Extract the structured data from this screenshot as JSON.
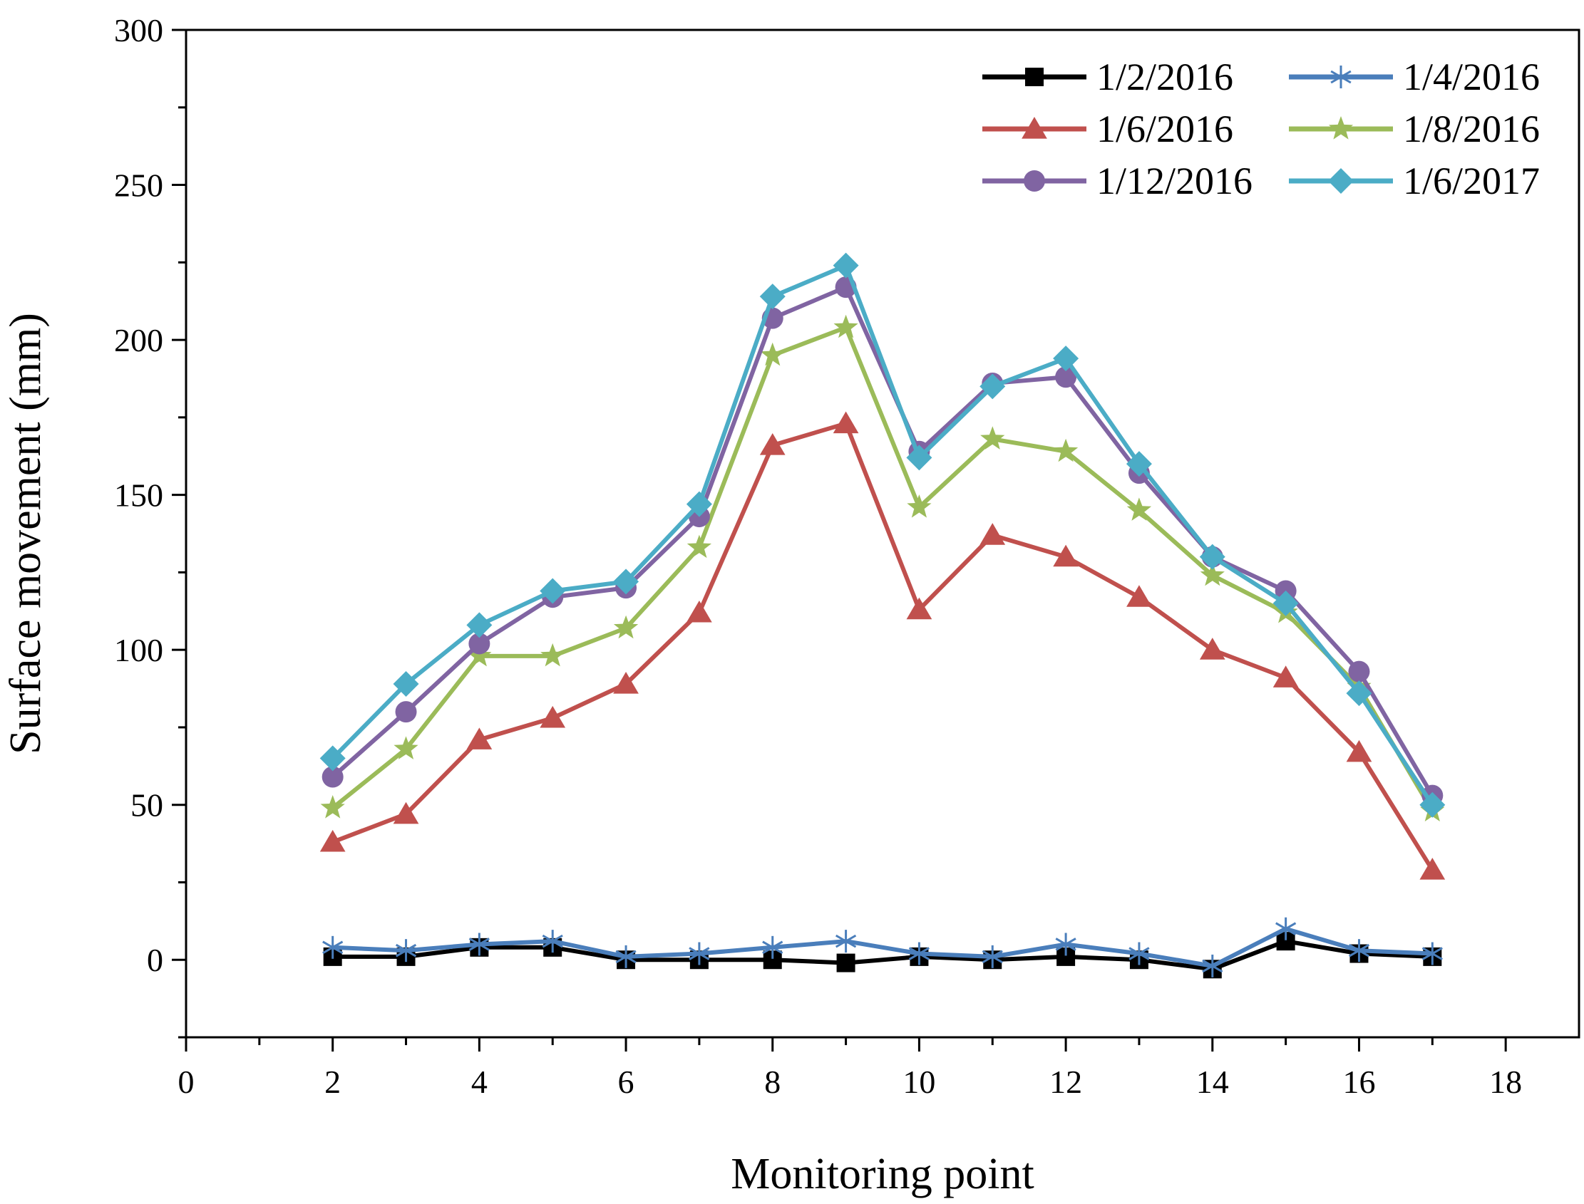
{
  "chart_data": {
    "type": "line",
    "title": "",
    "xlabel": "Monitoring point",
    "ylabel": "Surface movement (mm)",
    "xlim": [
      0,
      19
    ],
    "ylim": [
      -25,
      300
    ],
    "x_ticks": [
      0,
      2,
      4,
      6,
      8,
      10,
      12,
      14,
      16,
      18
    ],
    "y_ticks": [
      0,
      50,
      100,
      150,
      200,
      250,
      300
    ],
    "grid": false,
    "legend_position": "top-right",
    "x": [
      2,
      3,
      4,
      5,
      6,
      7,
      8,
      9,
      10,
      11,
      12,
      13,
      14,
      15,
      16,
      17
    ],
    "series": [
      {
        "name": "1/2/2016",
        "color": "#000000",
        "marker": "square",
        "values": [
          1,
          1,
          4,
          4,
          0,
          0,
          0,
          -1,
          1,
          0,
          1,
          0,
          -3,
          6,
          2,
          1
        ]
      },
      {
        "name": "1/4/2016",
        "color": "#4a7ebb",
        "marker": "star6",
        "values": [
          4,
          3,
          5,
          6,
          1,
          2,
          4,
          6,
          2,
          1,
          5,
          2,
          -2,
          10,
          3,
          2
        ]
      },
      {
        "name": "1/6/2016",
        "color": "#c0504d",
        "marker": "triangle",
        "values": [
          38,
          47,
          71,
          78,
          89,
          112,
          166,
          173,
          113,
          137,
          130,
          117,
          100,
          91,
          67,
          29
        ]
      },
      {
        "name": "1/8/2016",
        "color": "#9bbb59",
        "marker": "star5",
        "values": [
          49,
          68,
          98,
          98,
          107,
          133,
          195,
          204,
          146,
          168,
          164,
          145,
          124,
          112,
          88,
          48
        ]
      },
      {
        "name": "1/12/2016",
        "color": "#8064a2",
        "marker": "circle",
        "values": [
          59,
          80,
          102,
          117,
          120,
          143,
          207,
          217,
          164,
          186,
          188,
          157,
          130,
          119,
          93,
          53
        ]
      },
      {
        "name": "1/6/2017",
        "color": "#4bacc6",
        "marker": "diamond",
        "values": [
          65,
          89,
          108,
          119,
          122,
          147,
          214,
          224,
          162,
          185,
          194,
          160,
          130,
          115,
          86,
          50
        ]
      }
    ]
  }
}
